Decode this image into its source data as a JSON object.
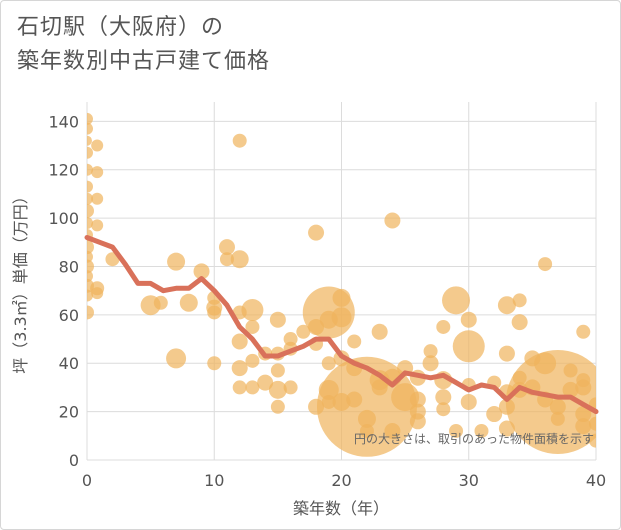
{
  "title_line1": "石切駅（大阪府）の",
  "title_line2": "築年数別中古戸建て価格",
  "note": "円の大きさは、取引のあった物件面積を示す",
  "colors": {
    "bubble": "#f0b35c",
    "line": "#d9715a",
    "grid": "#dcdcdc",
    "plot_bg": "#ffffff"
  },
  "chart_data": {
    "type": "scatter",
    "xlabel": "築年数（年）",
    "ylabel": "坪（3.3㎡）単価（万円）",
    "xlim": [
      0,
      40
    ],
    "ylim": [
      0,
      148
    ],
    "xticks": [
      0,
      10,
      20,
      30,
      40
    ],
    "yticks": [
      0,
      20,
      40,
      60,
      80,
      100,
      120,
      140
    ],
    "grid": true,
    "points": [
      {
        "x": 0,
        "y": 141,
        "s": 6
      },
      {
        "x": 0,
        "y": 137,
        "s": 6
      },
      {
        "x": 0,
        "y": 132,
        "s": 5
      },
      {
        "x": 0,
        "y": 127,
        "s": 6
      },
      {
        "x": 0,
        "y": 120,
        "s": 6
      },
      {
        "x": 0,
        "y": 113,
        "s": 6
      },
      {
        "x": 0,
        "y": 108,
        "s": 6
      },
      {
        "x": 0,
        "y": 103,
        "s": 7
      },
      {
        "x": 0,
        "y": 98,
        "s": 6
      },
      {
        "x": 0,
        "y": 93,
        "s": 6
      },
      {
        "x": 0,
        "y": 88,
        "s": 7
      },
      {
        "x": 0,
        "y": 84,
        "s": 6
      },
      {
        "x": 0,
        "y": 80,
        "s": 7
      },
      {
        "x": 0,
        "y": 76,
        "s": 6
      },
      {
        "x": 0,
        "y": 72,
        "s": 7
      },
      {
        "x": 0,
        "y": 68,
        "s": 6
      },
      {
        "x": 0,
        "y": 61,
        "s": 7
      },
      {
        "x": 0.8,
        "y": 130,
        "s": 6
      },
      {
        "x": 0.8,
        "y": 119,
        "s": 6
      },
      {
        "x": 0.8,
        "y": 108,
        "s": 6
      },
      {
        "x": 0.8,
        "y": 97,
        "s": 6
      },
      {
        "x": 0.8,
        "y": 71,
        "s": 7
      },
      {
        "x": 0.8,
        "y": 69,
        "s": 6
      },
      {
        "x": 2,
        "y": 83,
        "s": 7
      },
      {
        "x": 5,
        "y": 64,
        "s": 10
      },
      {
        "x": 5.8,
        "y": 65,
        "s": 7
      },
      {
        "x": 7,
        "y": 82,
        "s": 9
      },
      {
        "x": 7,
        "y": 42,
        "s": 10
      },
      {
        "x": 8,
        "y": 65,
        "s": 9
      },
      {
        "x": 9,
        "y": 78,
        "s": 8
      },
      {
        "x": 10,
        "y": 67,
        "s": 7
      },
      {
        "x": 10,
        "y": 63,
        "s": 8
      },
      {
        "x": 10,
        "y": 61,
        "s": 7
      },
      {
        "x": 10,
        "y": 40,
        "s": 7
      },
      {
        "x": 11,
        "y": 88,
        "s": 8
      },
      {
        "x": 11,
        "y": 83,
        "s": 7
      },
      {
        "x": 12,
        "y": 132,
        "s": 7
      },
      {
        "x": 12,
        "y": 83,
        "s": 9
      },
      {
        "x": 12,
        "y": 61,
        "s": 7
      },
      {
        "x": 12,
        "y": 49,
        "s": 8
      },
      {
        "x": 12,
        "y": 38,
        "s": 8
      },
      {
        "x": 12,
        "y": 30,
        "s": 7
      },
      {
        "x": 13,
        "y": 62,
        "s": 11
      },
      {
        "x": 13,
        "y": 55,
        "s": 7
      },
      {
        "x": 13,
        "y": 41,
        "s": 7
      },
      {
        "x": 13,
        "y": 30,
        "s": 7
      },
      {
        "x": 14,
        "y": 44,
        "s": 7
      },
      {
        "x": 14,
        "y": 32,
        "s": 8
      },
      {
        "x": 15,
        "y": 58,
        "s": 8
      },
      {
        "x": 15,
        "y": 44,
        "s": 7
      },
      {
        "x": 15,
        "y": 37,
        "s": 7
      },
      {
        "x": 15,
        "y": 29,
        "s": 9
      },
      {
        "x": 15,
        "y": 22,
        "s": 7
      },
      {
        "x": 16,
        "y": 50,
        "s": 7
      },
      {
        "x": 16,
        "y": 46,
        "s": 7
      },
      {
        "x": 16,
        "y": 30,
        "s": 7
      },
      {
        "x": 17,
        "y": 53,
        "s": 7
      },
      {
        "x": 18,
        "y": 94,
        "s": 8
      },
      {
        "x": 18,
        "y": 55,
        "s": 8
      },
      {
        "x": 18,
        "y": 48,
        "s": 7
      },
      {
        "x": 18,
        "y": 22,
        "s": 8
      },
      {
        "x": 19,
        "y": 61,
        "s": 26
      },
      {
        "x": 19,
        "y": 58,
        "s": 9
      },
      {
        "x": 19,
        "y": 40,
        "s": 7
      },
      {
        "x": 19,
        "y": 29,
        "s": 10
      },
      {
        "x": 19,
        "y": 24,
        "s": 7
      },
      {
        "x": 20,
        "y": 67,
        "s": 9
      },
      {
        "x": 20,
        "y": 59,
        "s": 10
      },
      {
        "x": 20,
        "y": 42,
        "s": 8
      },
      {
        "x": 20,
        "y": 24,
        "s": 9
      },
      {
        "x": 21,
        "y": 49,
        "s": 7
      },
      {
        "x": 21,
        "y": 38,
        "s": 8
      },
      {
        "x": 21,
        "y": 25,
        "s": 8
      },
      {
        "x": 22,
        "y": 22,
        "s": 50
      },
      {
        "x": 22,
        "y": 17,
        "s": 9
      },
      {
        "x": 22,
        "y": 12,
        "s": 7
      },
      {
        "x": 23,
        "y": 53,
        "s": 8
      },
      {
        "x": 23,
        "y": 33,
        "s": 10
      },
      {
        "x": 23,
        "y": 30,
        "s": 8
      },
      {
        "x": 24,
        "y": 99,
        "s": 8
      },
      {
        "x": 24,
        "y": 34,
        "s": 9
      },
      {
        "x": 24,
        "y": 12,
        "s": 8
      },
      {
        "x": 25,
        "y": 38,
        "s": 8
      },
      {
        "x": 25,
        "y": 26,
        "s": 14
      },
      {
        "x": 26,
        "y": 34,
        "s": 8
      },
      {
        "x": 26,
        "y": 25,
        "s": 8
      },
      {
        "x": 26,
        "y": 20,
        "s": 8
      },
      {
        "x": 26,
        "y": 16,
        "s": 8
      },
      {
        "x": 27,
        "y": 45,
        "s": 7
      },
      {
        "x": 27,
        "y": 40,
        "s": 8
      },
      {
        "x": 28,
        "y": 55,
        "s": 7
      },
      {
        "x": 28,
        "y": 33,
        "s": 9
      },
      {
        "x": 28,
        "y": 26,
        "s": 8
      },
      {
        "x": 28,
        "y": 21,
        "s": 7
      },
      {
        "x": 29,
        "y": 66,
        "s": 14
      },
      {
        "x": 29,
        "y": 12,
        "s": 7
      },
      {
        "x": 30,
        "y": 58,
        "s": 8
      },
      {
        "x": 30,
        "y": 47,
        "s": 16
      },
      {
        "x": 30,
        "y": 31,
        "s": 7
      },
      {
        "x": 30,
        "y": 24,
        "s": 8
      },
      {
        "x": 31,
        "y": 12,
        "s": 7
      },
      {
        "x": 32,
        "y": 32,
        "s": 7
      },
      {
        "x": 32,
        "y": 19,
        "s": 8
      },
      {
        "x": 33,
        "y": 64,
        "s": 9
      },
      {
        "x": 33,
        "y": 44,
        "s": 8
      },
      {
        "x": 33,
        "y": 28,
        "s": 8
      },
      {
        "x": 33,
        "y": 22,
        "s": 8
      },
      {
        "x": 33,
        "y": 13,
        "s": 8
      },
      {
        "x": 34,
        "y": 66,
        "s": 7
      },
      {
        "x": 34,
        "y": 57,
        "s": 8
      },
      {
        "x": 34,
        "y": 34,
        "s": 7
      },
      {
        "x": 34,
        "y": 29,
        "s": 8
      },
      {
        "x": 35,
        "y": 42,
        "s": 8
      },
      {
        "x": 35,
        "y": 30,
        "s": 8
      },
      {
        "x": 36,
        "y": 81,
        "s": 7
      },
      {
        "x": 36,
        "y": 40,
        "s": 11
      },
      {
        "x": 36,
        "y": 25,
        "s": 8
      },
      {
        "x": 37,
        "y": 24,
        "s": 52
      },
      {
        "x": 37,
        "y": 22,
        "s": 8
      },
      {
        "x": 37,
        "y": 17,
        "s": 7
      },
      {
        "x": 38,
        "y": 37,
        "s": 7
      },
      {
        "x": 38,
        "y": 29,
        "s": 8
      },
      {
        "x": 39,
        "y": 53,
        "s": 7
      },
      {
        "x": 39,
        "y": 33,
        "s": 7
      },
      {
        "x": 39,
        "y": 30,
        "s": 8
      },
      {
        "x": 39,
        "y": 19,
        "s": 8
      },
      {
        "x": 39,
        "y": 14,
        "s": 8
      },
      {
        "x": 40,
        "y": 23,
        "s": 7
      },
      {
        "x": 40,
        "y": 15,
        "s": 7
      },
      {
        "x": 40,
        "y": 8,
        "s": 7
      }
    ],
    "trend": {
      "x": [
        0,
        1,
        2,
        3,
        4,
        5,
        6,
        7,
        8,
        9,
        10,
        11,
        12,
        13,
        14,
        15,
        16,
        17,
        18,
        19,
        20,
        21,
        22,
        23,
        24,
        25,
        26,
        27,
        28,
        29,
        30,
        31,
        32,
        33,
        34,
        35,
        36,
        37,
        38,
        39,
        40
      ],
      "y": [
        92,
        90,
        88,
        81,
        73,
        73,
        70,
        71,
        71,
        75,
        70,
        64,
        55,
        50,
        43,
        43,
        45,
        47,
        50,
        50,
        43,
        40,
        38,
        35,
        31,
        36,
        35,
        34,
        35,
        32,
        29,
        31,
        30,
        25,
        30,
        28,
        27,
        26,
        26,
        23,
        20
      ]
    }
  }
}
